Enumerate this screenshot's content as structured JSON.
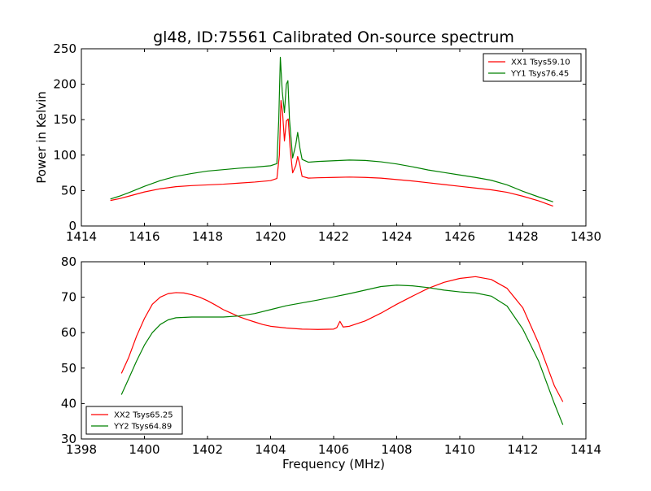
{
  "figure": {
    "title": "gl48, ID:75561 Calibrated On-source spectrum",
    "xlabel": "Frequency (MHz)",
    "ylabel": "Power in Kelvin"
  },
  "chart_data": [
    {
      "type": "line",
      "title": "gl48, ID:75561 Calibrated On-source spectrum",
      "xlabel": "",
      "ylabel": "Power in Kelvin",
      "xlim": [
        1414,
        1430
      ],
      "ylim": [
        0,
        250
      ],
      "xticks": [
        1414,
        1416,
        1418,
        1420,
        1422,
        1424,
        1426,
        1428,
        1430
      ],
      "yticks": [
        0,
        50,
        100,
        150,
        200,
        250
      ],
      "grid": false,
      "legend_position": "top-right",
      "series": [
        {
          "name": "XX1 Tsys59.10",
          "color": "#ff0000",
          "points": [
            [
              1414.92,
              36
            ],
            [
              1415.2,
              38.5
            ],
            [
              1415.5,
              42
            ],
            [
              1416.0,
              48
            ],
            [
              1416.5,
              52.5
            ],
            [
              1417.0,
              55.5
            ],
            [
              1417.5,
              57
            ],
            [
              1418.0,
              58
            ],
            [
              1418.5,
              59
            ],
            [
              1419.0,
              60.5
            ],
            [
              1419.5,
              62
            ],
            [
              1420.0,
              64
            ],
            [
              1420.2,
              67
            ],
            [
              1420.28,
              100
            ],
            [
              1420.33,
              177
            ],
            [
              1420.38,
              160
            ],
            [
              1420.44,
              120
            ],
            [
              1420.5,
              148
            ],
            [
              1420.56,
              151
            ],
            [
              1420.62,
              110
            ],
            [
              1420.7,
              75
            ],
            [
              1420.8,
              85
            ],
            [
              1420.86,
              98
            ],
            [
              1420.92,
              88
            ],
            [
              1421.0,
              70
            ],
            [
              1421.2,
              67.5
            ],
            [
              1421.5,
              68
            ],
            [
              1422.0,
              68.5
            ],
            [
              1422.5,
              69
            ],
            [
              1423.0,
              68.5
            ],
            [
              1423.5,
              67.5
            ],
            [
              1424.0,
              65.5
            ],
            [
              1424.5,
              63.5
            ],
            [
              1425.0,
              61
            ],
            [
              1425.5,
              58.5
            ],
            [
              1426.0,
              56
            ],
            [
              1426.5,
              53.5
            ],
            [
              1427.0,
              51
            ],
            [
              1427.5,
              47.5
            ],
            [
              1428.0,
              42
            ],
            [
              1428.5,
              35.5
            ],
            [
              1428.96,
              28
            ]
          ]
        },
        {
          "name": "YY1 Tsys76.45",
          "color": "#008000",
          "points": [
            [
              1414.92,
              38
            ],
            [
              1415.2,
              42
            ],
            [
              1415.5,
              47
            ],
            [
              1416.0,
              56
            ],
            [
              1416.5,
              64
            ],
            [
              1417.0,
              70
            ],
            [
              1417.5,
              74
            ],
            [
              1418.0,
              77.5
            ],
            [
              1418.5,
              79.5
            ],
            [
              1419.0,
              81.5
            ],
            [
              1419.5,
              83
            ],
            [
              1420.0,
              85
            ],
            [
              1420.2,
              88
            ],
            [
              1420.26,
              150
            ],
            [
              1420.31,
              238
            ],
            [
              1420.37,
              190
            ],
            [
              1420.44,
              160
            ],
            [
              1420.5,
              200
            ],
            [
              1420.55,
              205
            ],
            [
              1420.6,
              150
            ],
            [
              1420.7,
              96
            ],
            [
              1420.8,
              115
            ],
            [
              1420.86,
              132
            ],
            [
              1420.93,
              110
            ],
            [
              1421.0,
              94
            ],
            [
              1421.2,
              90
            ],
            [
              1421.5,
              91
            ],
            [
              1422.0,
              92
            ],
            [
              1422.5,
              93
            ],
            [
              1423.0,
              92.5
            ],
            [
              1423.5,
              90.5
            ],
            [
              1424.0,
              87.5
            ],
            [
              1424.5,
              83.5
            ],
            [
              1425.0,
              79
            ],
            [
              1425.5,
              75.5
            ],
            [
              1426.0,
              72
            ],
            [
              1426.5,
              68.5
            ],
            [
              1427.0,
              64.5
            ],
            [
              1427.5,
              58
            ],
            [
              1428.0,
              49
            ],
            [
              1428.5,
              41
            ],
            [
              1428.96,
              34
            ]
          ]
        }
      ]
    },
    {
      "type": "line",
      "title": "",
      "xlabel": "Frequency (MHz)",
      "ylabel": "",
      "xlim": [
        1398,
        1414
      ],
      "ylim": [
        30,
        80
      ],
      "xticks": [
        1398,
        1400,
        1402,
        1404,
        1406,
        1408,
        1410,
        1412,
        1414
      ],
      "yticks": [
        30,
        40,
        50,
        60,
        70,
        80
      ],
      "grid": false,
      "legend_position": "bottom-left",
      "series": [
        {
          "name": "XX2 Tsys65.25",
          "color": "#ff0000",
          "points": [
            [
              1399.27,
              48.5
            ],
            [
              1399.5,
              53
            ],
            [
              1399.75,
              59
            ],
            [
              1400.0,
              64
            ],
            [
              1400.25,
              68
            ],
            [
              1400.5,
              70
            ],
            [
              1400.75,
              71
            ],
            [
              1401.0,
              71.3
            ],
            [
              1401.25,
              71.2
            ],
            [
              1401.5,
              70.7
            ],
            [
              1401.75,
              70
            ],
            [
              1402.0,
              69
            ],
            [
              1402.25,
              67.8
            ],
            [
              1402.5,
              66.5
            ],
            [
              1402.75,
              65.5
            ],
            [
              1403.0,
              64.5
            ],
            [
              1403.25,
              63.7
            ],
            [
              1403.5,
              63
            ],
            [
              1403.75,
              62.3
            ],
            [
              1404.0,
              61.8
            ],
            [
              1404.5,
              61.3
            ],
            [
              1405.0,
              61
            ],
            [
              1405.5,
              60.9
            ],
            [
              1406.0,
              61
            ],
            [
              1406.1,
              61.4
            ],
            [
              1406.2,
              63.2
            ],
            [
              1406.3,
              61.6
            ],
            [
              1406.5,
              61.8
            ],
            [
              1407.0,
              63.3
            ],
            [
              1407.5,
              65.5
            ],
            [
              1408.0,
              68
            ],
            [
              1408.5,
              70.3
            ],
            [
              1409.0,
              72.5
            ],
            [
              1409.5,
              74.2
            ],
            [
              1410.0,
              75.3
            ],
            [
              1410.5,
              75.8
            ],
            [
              1411.0,
              75
            ],
            [
              1411.5,
              72.5
            ],
            [
              1412.0,
              67
            ],
            [
              1412.5,
              57
            ],
            [
              1413.0,
              45
            ],
            [
              1413.27,
              40.5
            ]
          ]
        },
        {
          "name": "YY2 Tsys64.89",
          "color": "#008000",
          "points": [
            [
              1399.27,
              42.5
            ],
            [
              1399.5,
              47
            ],
            [
              1399.75,
              52
            ],
            [
              1400.0,
              56.5
            ],
            [
              1400.25,
              60
            ],
            [
              1400.5,
              62.3
            ],
            [
              1400.75,
              63.6
            ],
            [
              1401.0,
              64.2
            ],
            [
              1401.5,
              64.4
            ],
            [
              1402.0,
              64.4
            ],
            [
              1402.5,
              64.4
            ],
            [
              1403.0,
              64.7
            ],
            [
              1403.5,
              65.4
            ],
            [
              1404.0,
              66.5
            ],
            [
              1404.5,
              67.6
            ],
            [
              1405.0,
              68.4
            ],
            [
              1405.5,
              69.2
            ],
            [
              1406.0,
              70.1
            ],
            [
              1406.5,
              71
            ],
            [
              1407.0,
              72
            ],
            [
              1407.5,
              73
            ],
            [
              1408.0,
              73.4
            ],
            [
              1408.5,
              73.2
            ],
            [
              1409.0,
              72.7
            ],
            [
              1409.5,
              72
            ],
            [
              1410.0,
              71.5
            ],
            [
              1410.5,
              71.2
            ],
            [
              1411.0,
              70.3
            ],
            [
              1411.5,
              67.5
            ],
            [
              1412.0,
              61
            ],
            [
              1412.5,
              52
            ],
            [
              1413.0,
              40
            ],
            [
              1413.27,
              34
            ]
          ]
        }
      ]
    }
  ]
}
